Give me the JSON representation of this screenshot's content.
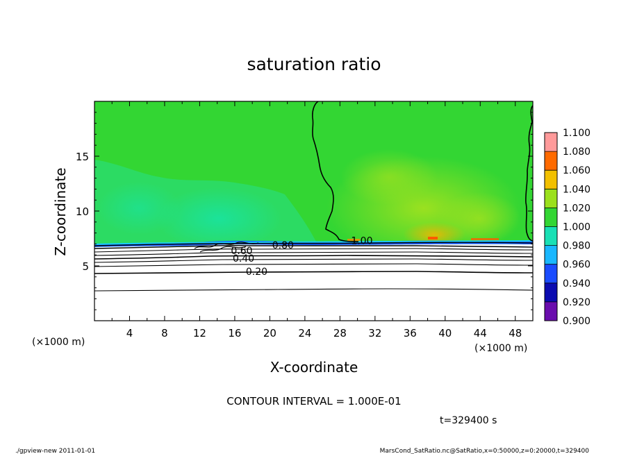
{
  "chart_data": {
    "type": "heatmap",
    "title": "saturation ratio",
    "xlabel": "X-coordinate",
    "ylabel": "Z-coordinate",
    "x_unit": "(×1000 m)",
    "y_unit": "(×1000 m)",
    "xlim": [
      0,
      50
    ],
    "ylim": [
      0,
      20
    ],
    "x_ticks": [
      4,
      8,
      12,
      16,
      20,
      24,
      28,
      32,
      36,
      40,
      44,
      48
    ],
    "y_ticks": [
      5,
      10,
      15
    ],
    "colorbar": {
      "levels": [
        0.9,
        0.92,
        0.94,
        0.96,
        0.98,
        1.0,
        1.02,
        1.04,
        1.06,
        1.08,
        1.1
      ],
      "labels": [
        "0.900",
        "0.920",
        "0.940",
        "0.960",
        "0.980",
        "1.000",
        "1.020",
        "1.040",
        "1.060",
        "1.080",
        "1.100"
      ],
      "colors": [
        "#6a0dad",
        "#0b0bb0",
        "#1a4cff",
        "#19b7ff",
        "#19e0b5",
        "#33d633",
        "#9be01c",
        "#f2c000",
        "#ff6a00",
        "#ff2a2a",
        "#ff9a9a"
      ]
    },
    "contours": [
      {
        "level": 0.2,
        "label": "0.20",
        "label_at": [
          18.5,
          4.5
        ]
      },
      {
        "level": 0.4,
        "label": "0.40",
        "label_at": [
          17,
          5.7
        ]
      },
      {
        "level": 0.6,
        "label": "0.60",
        "label_at": [
          16.8,
          6.4
        ]
      },
      {
        "level": 0.8,
        "label": "0.80",
        "label_at": [
          21.5,
          6.9
        ]
      },
      {
        "level": 1.0,
        "label": "1.00",
        "label_at": [
          30.5,
          7.3
        ]
      }
    ],
    "contour_interval": "CONTOUR INTERVAL = 1.000E-01",
    "time_label": "t=329400 s"
  },
  "footer": {
    "left": "./gpview-new   2011-01-01",
    "right": "MarsCond_SatRatio.nc@SatRatio,x=0:50000,z=0:20000,t=329400"
  }
}
